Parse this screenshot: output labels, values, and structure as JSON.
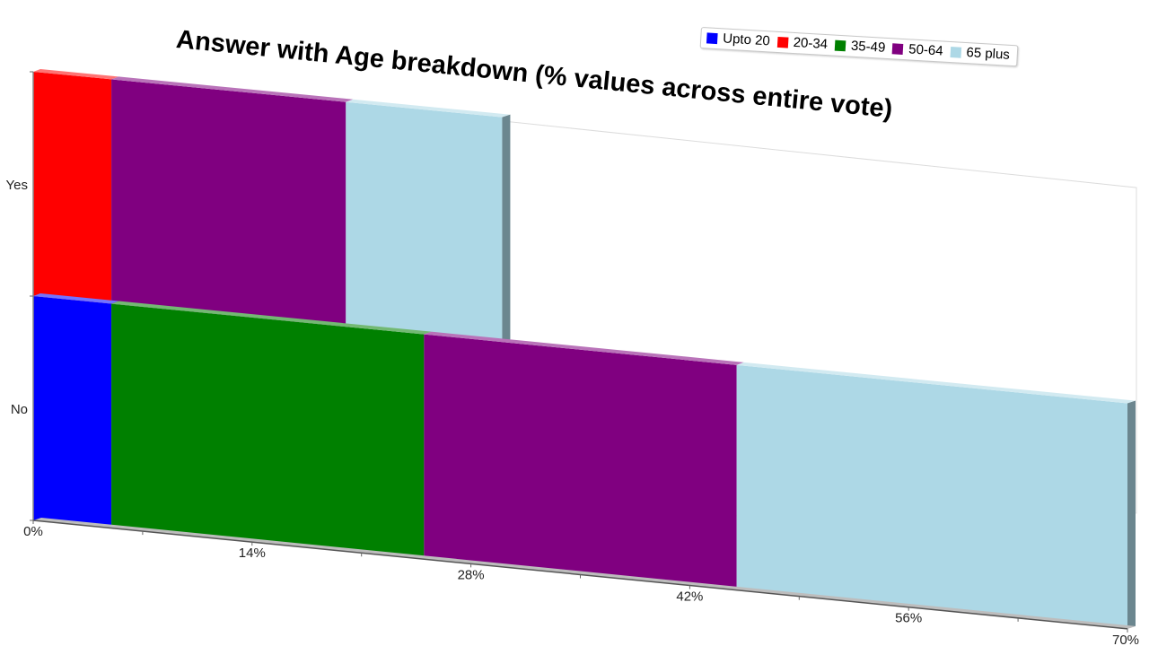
{
  "chart_data": {
    "type": "bar",
    "orientation": "horizontal",
    "stacked": true,
    "title": "Answer with Age breakdown (% values across entire vote)",
    "categories": [
      "Yes",
      "No"
    ],
    "series": [
      {
        "name": "Upto 20",
        "color": "#0000ff",
        "values": [
          0,
          5
        ]
      },
      {
        "name": "20-34",
        "color": "#ff0000",
        "values": [
          5,
          0
        ]
      },
      {
        "name": "35-49",
        "color": "#008000",
        "values": [
          0,
          20
        ]
      },
      {
        "name": "50-64",
        "color": "#800080",
        "values": [
          15,
          20
        ]
      },
      {
        "name": "65 plus",
        "color": "#add8e6",
        "values": [
          10,
          25
        ]
      }
    ],
    "xlim": [
      0,
      70
    ],
    "xticks": [
      "0%",
      "14%",
      "28%",
      "42%",
      "56%",
      "70%"
    ],
    "legend_position": "top-right",
    "grid": false
  }
}
